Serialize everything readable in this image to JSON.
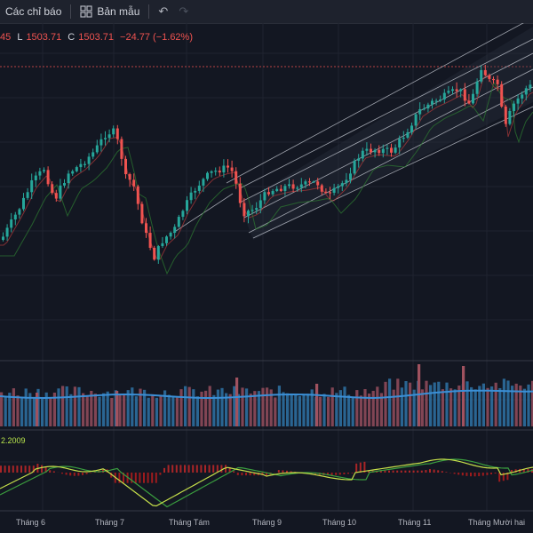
{
  "toolbar": {
    "indicators_label": "Các chỉ báo",
    "templates_label": "Bản mẫu",
    "indicators_icon": "indicators-icon",
    "templates_icon": "grid-icon",
    "undo_icon": "undo-icon",
    "redo_icon": "redo-icon"
  },
  "legend": {
    "high_partial": "45",
    "low_key": "L",
    "low_value": "1503.71",
    "close_key": "C",
    "close_value": "1503.71",
    "change": "−24.77 (−1.62%)"
  },
  "macd": {
    "value": "2.2009"
  },
  "colors": {
    "background": "#131722",
    "up": "#26a69a",
    "down": "#ef5350",
    "volume": "#2e6e9e",
    "macd_line": "#c6e04a",
    "signal_line": "#3a9e3f"
  },
  "x_axis": {
    "months": [
      "Tháng 6",
      "Tháng 7",
      "Tháng Tám",
      "Tháng 9",
      "Tháng 10",
      "Tháng 11",
      "Tháng Mười hai"
    ]
  }
}
